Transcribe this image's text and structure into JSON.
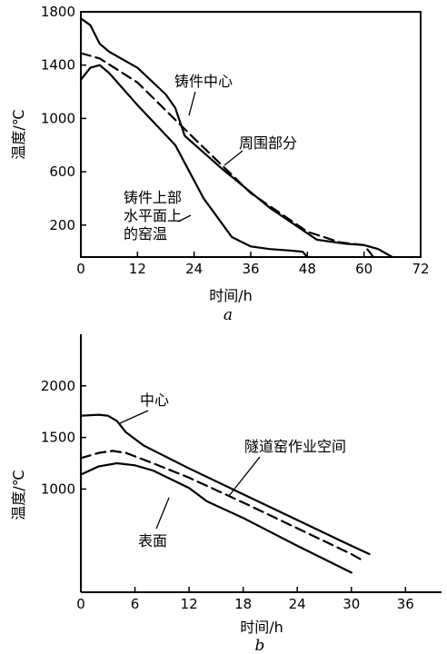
{
  "chart_data": [
    {
      "type": "line",
      "panel_label": "a",
      "xlabel": "时间/h",
      "ylabel": "温度/℃",
      "xlim": [
        0,
        72
      ],
      "ylim": [
        -40,
        1800
      ],
      "x_ticks": [
        0,
        12,
        24,
        36,
        48,
        60,
        72
      ],
      "y_ticks": [
        200,
        600,
        1000,
        1400,
        1800
      ],
      "grid": false,
      "series": [
        {
          "name": "铸件中心",
          "style": "solid",
          "x": [
            0,
            2,
            4,
            6,
            12,
            18,
            20,
            22,
            30,
            40,
            50,
            56,
            60,
            63,
            66
          ],
          "y": [
            1750,
            1700,
            1560,
            1500,
            1380,
            1180,
            1080,
            870,
            620,
            330,
            90,
            60,
            50,
            20,
            -40
          ]
        },
        {
          "name": "周围部分",
          "style": "dashed",
          "x": [
            0,
            4,
            12,
            24,
            36,
            48,
            55,
            60,
            62
          ],
          "y": [
            1490,
            1450,
            1270,
            850,
            440,
            150,
            70,
            50,
            -40
          ]
        },
        {
          "name": "铸件上部水平面上的窑温",
          "style": "solid",
          "x": [
            0,
            2,
            4,
            6,
            12,
            20,
            26,
            32,
            36,
            40,
            44,
            47,
            48
          ],
          "y": [
            1290,
            1380,
            1400,
            1340,
            1100,
            800,
            400,
            110,
            40,
            20,
            10,
            0,
            -40
          ]
        }
      ],
      "annotations": [
        "铸件中心",
        "周围部分",
        "铸件上部",
        "水平面上",
        "的窑温"
      ]
    },
    {
      "type": "line",
      "panel_label": "b",
      "xlabel": "时间/h",
      "ylabel": "温度/℃",
      "xlim": [
        0,
        40
      ],
      "ylim": [
        0,
        2500
      ],
      "x_ticks": [
        0,
        6,
        12,
        18,
        24,
        30,
        36
      ],
      "y_ticks": [
        1000,
        1500,
        2000
      ],
      "grid": false,
      "series": [
        {
          "name": "中心",
          "style": "solid",
          "x": [
            0,
            2,
            3,
            4,
            5,
            7,
            12,
            18,
            24,
            30,
            32
          ],
          "y": [
            1710,
            1720,
            1710,
            1660,
            1550,
            1420,
            1200,
            950,
            700,
            450,
            370
          ]
        },
        {
          "name": "隧道窑作业空间",
          "style": "dashed",
          "x": [
            0,
            2,
            3.5,
            5,
            8,
            12,
            18,
            24,
            30,
            31
          ],
          "y": [
            1300,
            1350,
            1370,
            1350,
            1250,
            1110,
            870,
            620,
            370,
            320
          ]
        },
        {
          "name": "表面",
          "style": "solid",
          "x": [
            0,
            2,
            4,
            6,
            8,
            12,
            14,
            18,
            24,
            30
          ],
          "y": [
            1140,
            1220,
            1250,
            1230,
            1180,
            1010,
            880,
            720,
            450,
            190
          ]
        }
      ],
      "annotations": [
        "中心",
        "隧道窑作业空间",
        "表面"
      ]
    }
  ]
}
